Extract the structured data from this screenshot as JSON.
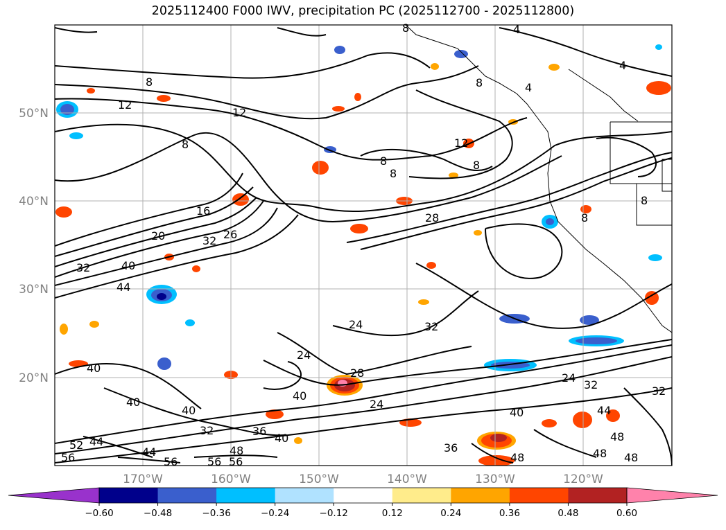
{
  "title": "2025112400 F000 IWV, precipitation PC (2025112700 - 2025112800)",
  "map": {
    "lat_labels": [
      "50°N",
      "40°N",
      "30°N",
      "20°N"
    ],
    "lon_labels": [
      "170°W",
      "160°W",
      "150°W",
      "140°W",
      "130°W",
      "120°W"
    ],
    "iwv_contour_labels": [
      "4",
      "8",
      "12",
      "16",
      "20",
      "24",
      "26",
      "28",
      "32",
      "36",
      "40",
      "44",
      "48",
      "52",
      "56"
    ]
  },
  "colorbar": {
    "tick_labels": [
      "−0.60",
      "−0.48",
      "−0.36",
      "−0.24",
      "−0.12",
      "0.12",
      "0.24",
      "0.36",
      "0.48",
      "0.60"
    ],
    "colors": [
      "#9932CC",
      "#00008B",
      "#3A5FCD",
      "#00BFFF",
      "#B0E2FF",
      "#FFFFFF",
      "#FFEC8B",
      "#FFA500",
      "#FF4500",
      "#B22222",
      "#FF82AB"
    ]
  }
}
